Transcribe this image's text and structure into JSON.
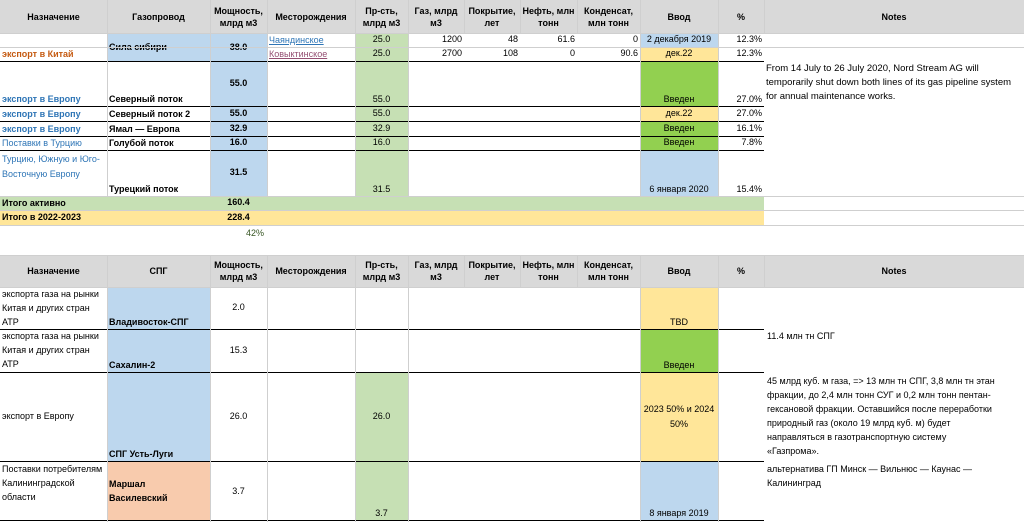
{
  "table1": {
    "headers": [
      "Назначение",
      "Газопровод",
      "Мощность, млрд м3",
      "Месторождения",
      "Пр-сть, млрд м3",
      "Газ, млрд м3",
      "Покрытие, лет",
      "Нефть, млн тонн",
      "Конденсат, млн тонн",
      "Ввод",
      "%",
      "Notes"
    ],
    "rows": {
      "sila": {
        "dest": "экспорт в Китай",
        "pipe": "Сила сибири",
        "cap": "38.0",
        "pct": "12.3%",
        "fields": [
          {
            "name": "Чаяндинское",
            "prod": "25.0",
            "gas": "1200",
            "cover": "48",
            "oil": "61.6",
            "cond": "0",
            "start": "2 декабря 2019"
          },
          {
            "name": "Ковыктинское",
            "prod": "25.0",
            "gas": "2700",
            "cover": "108",
            "oil": "0",
            "cond": "90.6",
            "start": "дек.22"
          }
        ],
        "pct2": "12.3%"
      },
      "ns": {
        "dest": "экспорт в Европу",
        "pipe": "Северный поток",
        "cap": "55.0",
        "prod": "55.0",
        "start": "Введен",
        "pct": "27.0%",
        "note": "From 14 July to 26 July 2020, Nord Stream AG will temporarily shut down both lines of its gas pipeline system for annual maintenance works."
      },
      "ns2": {
        "dest": "экспорт в Европу",
        "pipe": "Северный поток 2",
        "cap": "55.0",
        "prod": "55.0",
        "start": "дек.22",
        "pct": "27.0%"
      },
      "yamal": {
        "dest": "экспорт в Европу",
        "pipe": "Ямал — Европа",
        "cap": "32.9",
        "prod": "32.9",
        "start": "Введен",
        "pct": "16.1%"
      },
      "blue": {
        "dest": "Поставки  в Турцию",
        "pipe": "Голубой поток",
        "cap": "16.0",
        "prod": "16.0",
        "start": "Введен",
        "pct": "7.8%"
      },
      "turk": {
        "dest": "Турцию, Южную и Юго-Восточную Европу",
        "pipe": "Турецкий поток",
        "cap": "31.5",
        "prod": "31.5",
        "start": "6 января 2020",
        "pct": "15.4%"
      }
    },
    "total_active_label": "Итого активно",
    "total_active": "160.4",
    "total_2223_label": "Итого в 2022-2023",
    "total_2223": "228.4",
    "share": "42%"
  },
  "table2": {
    "headers": [
      "Назначение",
      "СПГ",
      "Мощность, млрд м3",
      "Месторождения",
      "Пр-сть, млрд м3",
      "Газ, млрд м3",
      "Покрытие, лет",
      "Нефть, млн тонн",
      "Конденсат, млн тонн",
      "Ввод",
      "%",
      "Notes"
    ],
    "rows": {
      "vlad": {
        "dest": "экспорта газа на рынки Китая и других стран АТР",
        "lng": "Владивосток-СПГ",
        "cap": "2.0",
        "start": "TBD"
      },
      "sakh": {
        "dest": "экспорта газа на рынки Китая и других стран АТР",
        "lng": "Сахалин-2",
        "cap": "15.3",
        "start": "Введен",
        "note": "11.4 млн тн СПГ"
      },
      "ust": {
        "dest": "экспорт в Европу",
        "lng": "СПГ Усть-Луги",
        "cap": "26.0",
        "prod": "26.0",
        "start": "2023 50% и 2024 50%",
        "note": " 45 млрд куб. м газа, => 13 млн тн СПГ, 3,8 млн тн этан фракции, до 2,4 млн тонн СУГ и 0,2 млн тонн пентан-гексановой фракции. Оставшийся после переработки природный газ (около 19 млрд куб. м) будет направляться в газотранспортную систему «Газпрома»."
      },
      "marsh": {
        "dest": "Поставки потребителям Калининградской области",
        "lng": "Маршал Василевский",
        "cap": "3.7",
        "prod": "3.7",
        "start": "8 января 2019",
        "note": "альтернатива ГП Минск — Вильнюс — Каунас — Калининград"
      }
    }
  }
}
